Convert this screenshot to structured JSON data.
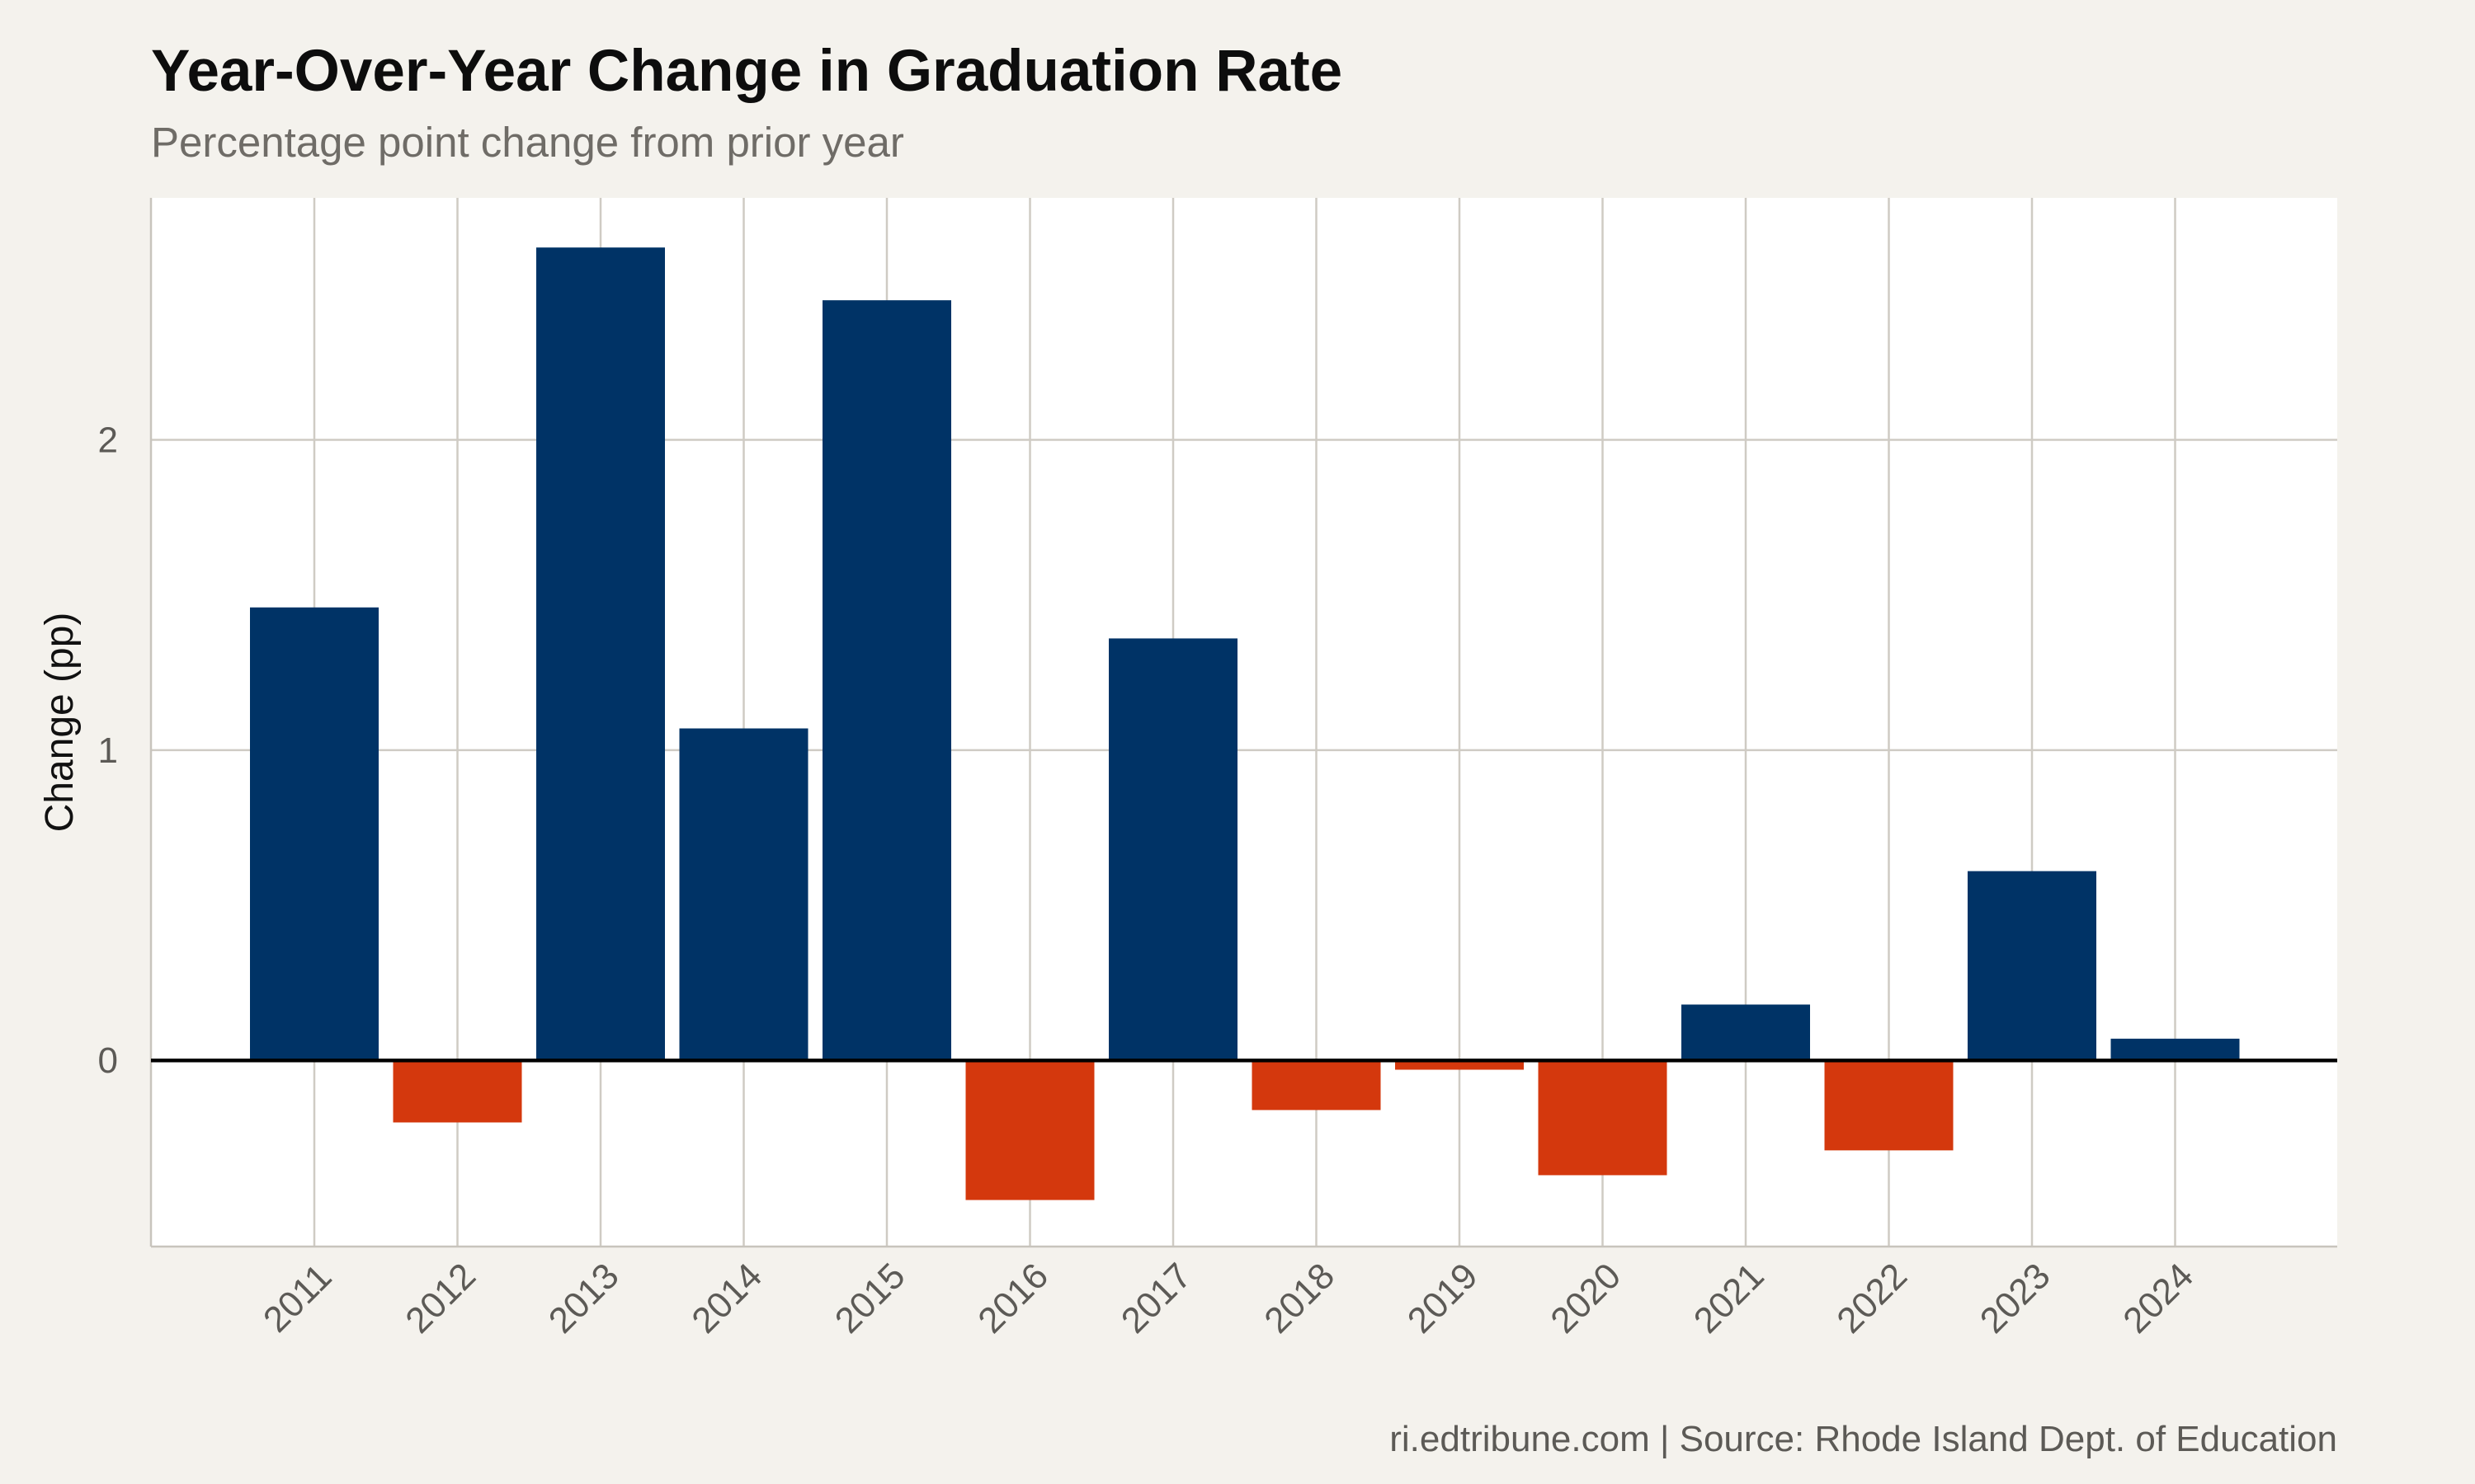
{
  "chart_data": {
    "type": "bar",
    "title": "Year-Over-Year Change in Graduation Rate",
    "subtitle": "Percentage point change from prior year",
    "xlabel": "",
    "ylabel": "Change (pp)",
    "caption": "ri.edtribune.com | Source: Rhode Island Dept. of Education",
    "categories": [
      "2011",
      "2012",
      "2013",
      "2014",
      "2015",
      "2016",
      "2017",
      "2018",
      "2019",
      "2020",
      "2021",
      "2022",
      "2023",
      "2024"
    ],
    "values": [
      1.46,
      -0.2,
      2.62,
      1.07,
      2.45,
      -0.45,
      1.36,
      -0.16,
      -0.03,
      -0.37,
      0.18,
      -0.29,
      0.61,
      0.07
    ],
    "ylim": [
      -0.6,
      2.78
    ],
    "yticks": [
      0,
      1,
      2
    ],
    "grid": true,
    "legend": "none",
    "colors": {
      "positive": "#003366",
      "negative": "#d4380d",
      "panel_background": "#ffffff",
      "page_background": "#f4f2ed"
    }
  }
}
